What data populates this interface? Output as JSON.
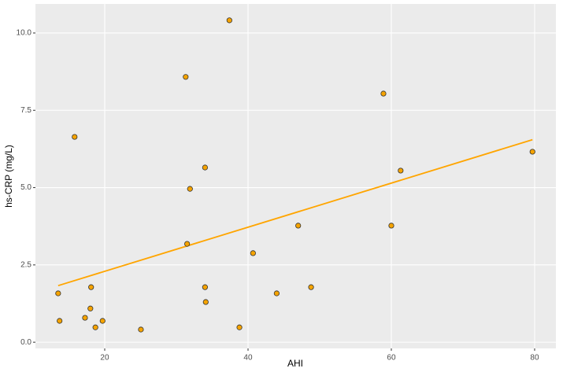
{
  "chart_data": {
    "type": "scatter",
    "x_label": "AHI",
    "y_label": "hs-CRP (mg/L)",
    "xlim": [
      10.33,
      82.97
    ],
    "ylim": [
      -0.2,
      10.94
    ],
    "xticks": [
      20,
      40,
      60,
      80
    ],
    "yticks": [
      {
        "value": 0,
        "label": "0.0"
      },
      2.5,
      {
        "value": 5,
        "label": "5.0"
      },
      7.5,
      {
        "value": 10,
        "label": "10.0"
      }
    ],
    "grid": true,
    "series": [
      {
        "color": "#f5a300",
        "x": [
          13.5,
          13.7,
          15.8,
          17.25,
          18.0,
          18.1,
          18.7,
          19.7,
          25.05,
          31.3,
          31.5,
          31.9,
          34.0,
          34.0,
          34.1,
          37.4,
          38.8,
          40.7,
          44.0,
          47.0,
          48.8,
          58.9,
          60.0,
          61.3,
          79.7
        ],
        "values": [
          1.58,
          0.69,
          6.64,
          0.79,
          1.09,
          1.78,
          0.48,
          0.69,
          0.41,
          8.58,
          3.18,
          4.96,
          5.65,
          1.78,
          1.3,
          10.41,
          0.48,
          2.88,
          1.58,
          3.77,
          1.78,
          8.04,
          3.77,
          5.55,
          6.16
        ]
      }
    ],
    "fit_line": {
      "color": "#ffa500",
      "x": [
        13.5,
        79.7
      ],
      "values": [
        1.83,
        6.55
      ]
    }
  }
}
